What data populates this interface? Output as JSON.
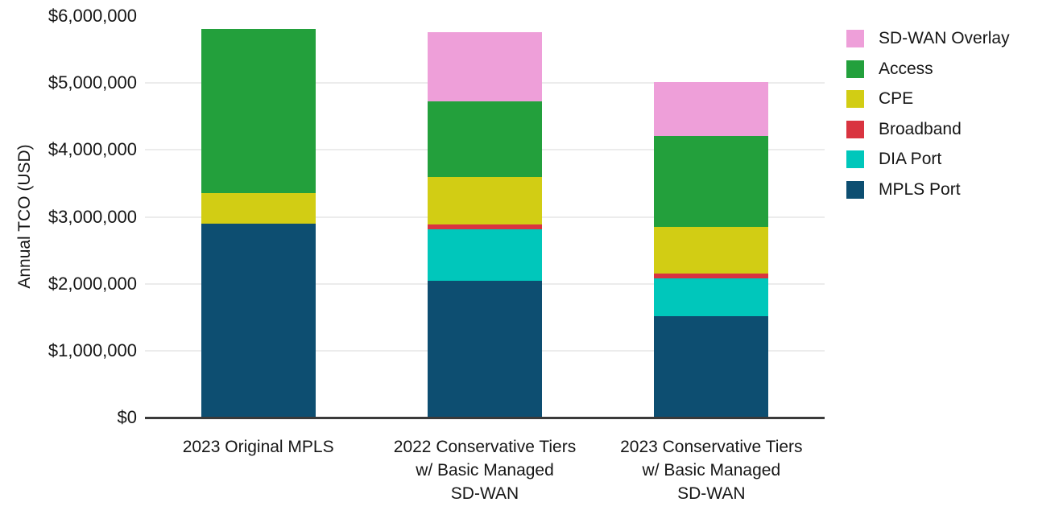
{
  "chart_data": {
    "type": "bar",
    "stacked": true,
    "title": "",
    "xlabel": "",
    "ylabel": "Annual TCO (USD)",
    "categories": [
      "2023 Original MPLS",
      "2022 Conservative Tiers w/ Basic Managed SD-WAN",
      "2023 Conservative Tiers w/ Basic Managed SD-WAN"
    ],
    "category_lines": [
      [
        "2023 Original MPLS"
      ],
      [
        "2022 Conservative Tiers",
        "w/ Basic Managed",
        "SD-WAN"
      ],
      [
        "2023 Conservative Tiers",
        "w/ Basic Managed",
        "SD-WAN"
      ]
    ],
    "series": [
      {
        "name": "MPLS Port",
        "color": "#0d4e71",
        "values": [
          2900000,
          2040000,
          1520000
        ]
      },
      {
        "name": "DIA Port",
        "color": "#00c7bb",
        "values": [
          0,
          775000,
          555000
        ]
      },
      {
        "name": "Broadband",
        "color": "#d93440",
        "values": [
          0,
          75000,
          75000
        ]
      },
      {
        "name": "CPE",
        "color": "#d2cd14",
        "values": [
          460000,
          700000,
          700000
        ]
      },
      {
        "name": "Access",
        "color": "#23a03c",
        "values": [
          2450000,
          1140000,
          1360000
        ]
      },
      {
        "name": "SD-WAN Overlay",
        "color": "#ee9fd9",
        "values": [
          0,
          1025000,
          810000
        ]
      }
    ],
    "totals": [
      5810000,
      5755000,
      5020000
    ],
    "legend": [
      "SD-WAN Overlay",
      "Access",
      "CPE",
      "Broadband",
      "DIA Port",
      "MPLS Port"
    ],
    "legend_position": "right",
    "grid": true,
    "ylim": [
      0,
      6000000
    ],
    "yticks": [
      0,
      1000000,
      2000000,
      3000000,
      4000000,
      5000000,
      6000000
    ],
    "ytick_labels": [
      "$0",
      "$1,000,000",
      "$2,000,000",
      "$3,000,000",
      "$4,000,000",
      "$5,000,000",
      "$6,000,000"
    ],
    "gridline_values": [
      1000000,
      2000000,
      3000000,
      4000000,
      5000000
    ],
    "colors": {
      "axis_line": "#3a3a3a",
      "gridline": "#ececec",
      "text": "#161616",
      "background": "#ffffff"
    }
  }
}
